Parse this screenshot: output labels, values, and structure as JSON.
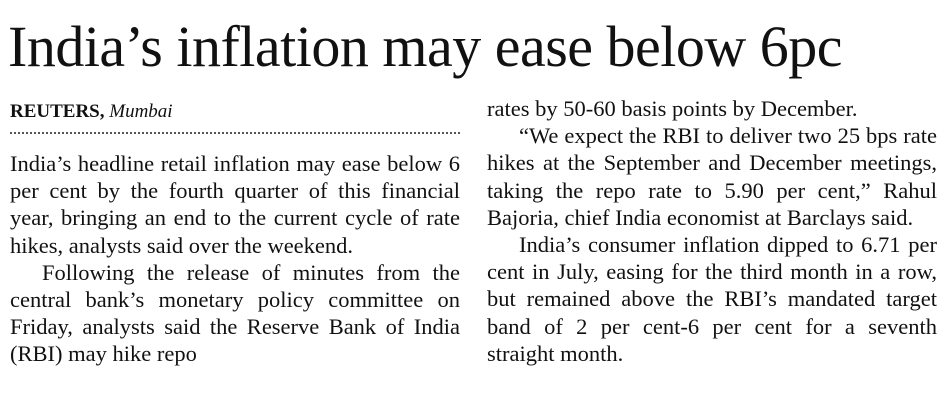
{
  "headline": "India’s inflation may ease below 6pc",
  "byline": {
    "agency": "REUTERS,",
    "location": "Mumbai"
  },
  "left_column": {
    "paragraphs": [
      "India’s headline retail inflation may ease below 6 per cent by the fourth quarter of this financial year, bringing an end to the current cycle of rate hikes, analysts said over the weekend.",
      "Following the release of minutes from the central bank’s monetary policy committee on Friday, analysts said the Reserve Bank of India (RBI) may hike repo"
    ]
  },
  "right_column": {
    "paragraphs": [
      "rates by 50-60 basis points by December.",
      "“We expect the RBI to deliver two 25 bps rate hikes at the September and December meetings, taking the repo rate to 5.90 per cent,” Rahul Bajoria, chief India economist at Barclays said.",
      "India’s consumer inflation dipped to 6.71 per cent in July, easing for the third month in a row, but remained above the RBI’s mandated target band of 2 per cent-6 per cent for a seventh straight month."
    ]
  }
}
